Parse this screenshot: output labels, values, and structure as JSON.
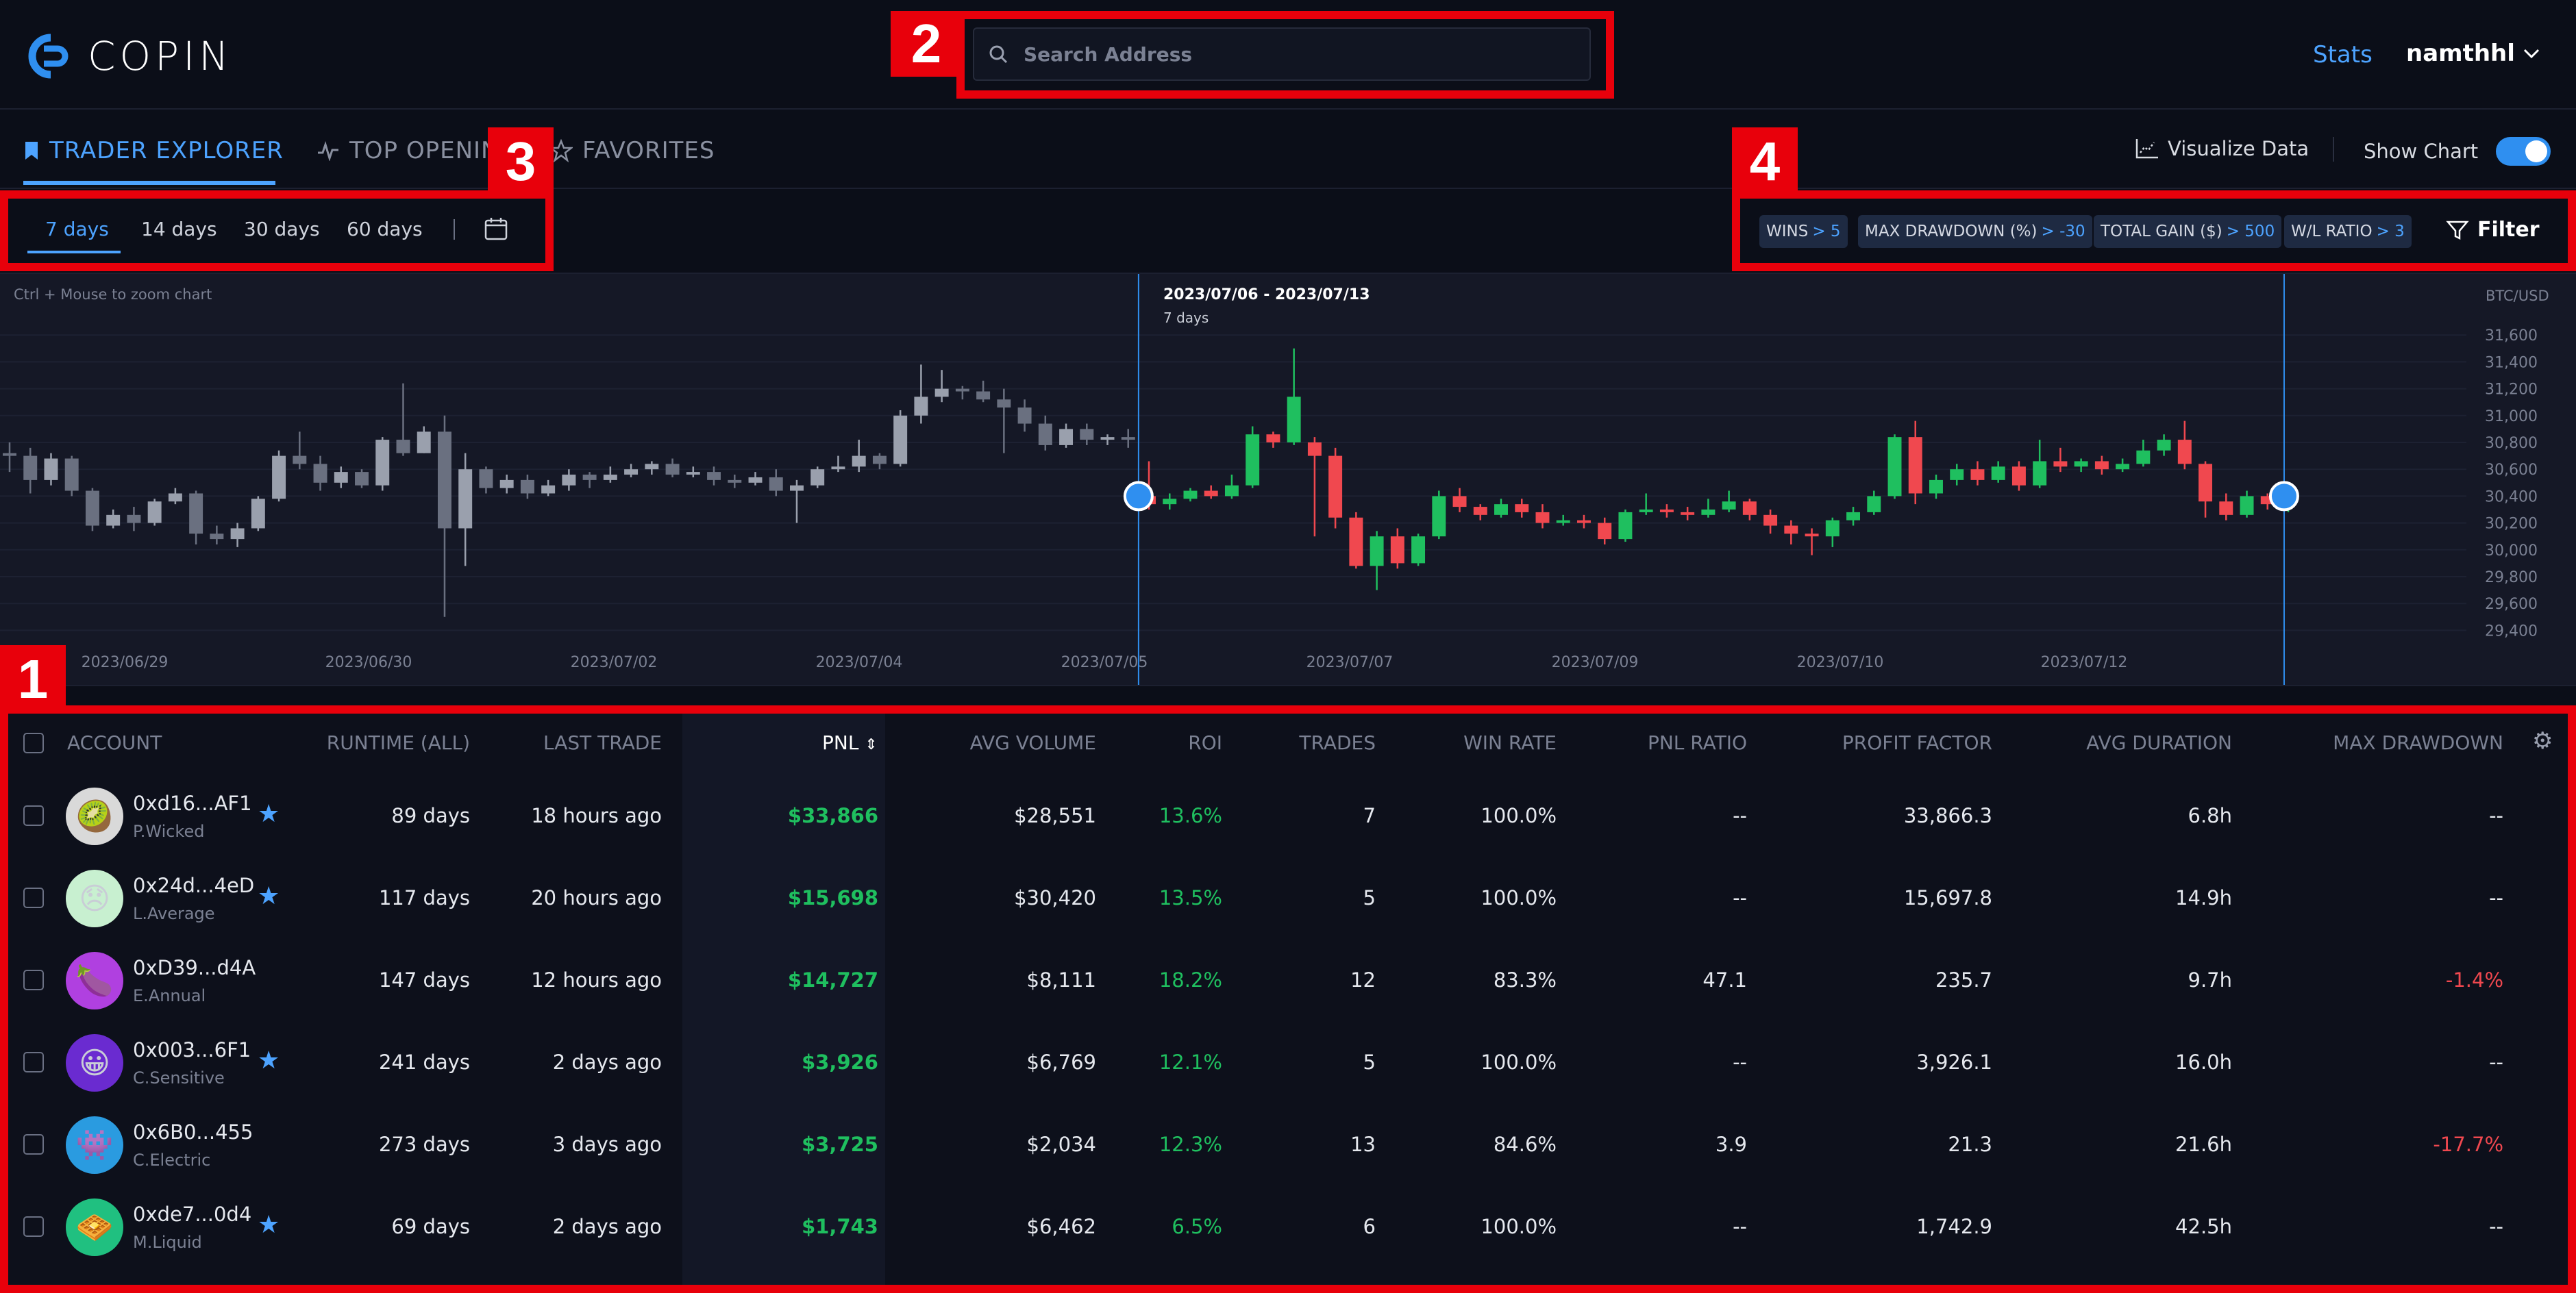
{
  "header": {
    "logo_text": "COPIN",
    "search_placeholder": "Search Address",
    "stats_label": "Stats",
    "username": "namthhl"
  },
  "tabs": [
    {
      "label": "TRADER EXPLORER",
      "active": true
    },
    {
      "label": "TOP OPENING"
    },
    {
      "label": "FAVORITES"
    }
  ],
  "tools": {
    "visualize_label": "Visualize Data",
    "show_chart_label": "Show Chart",
    "show_chart_on": true
  },
  "periods": {
    "items": [
      "7 days",
      "14 days",
      "30 days",
      "60 days"
    ],
    "selected": "7 days"
  },
  "filters": [
    {
      "label": "WINS",
      "value": "> 5"
    },
    {
      "label": "MAX DRAWDOWN (%)",
      "value": "> -30"
    },
    {
      "label": "TOTAL GAIN ($)",
      "value": "> 500"
    },
    {
      "label": "W/L RATIO",
      "value": "> 3"
    }
  ],
  "filter_label": "Filter",
  "chart_hint": "Ctrl + Mouse to zoom chart",
  "chart_data": {
    "type": "candlestick",
    "pair": "BTC/USD",
    "range_title": "2023/07/06 - 2023/07/13",
    "range_sub": "7 days",
    "y_ticks": [
      31600,
      31400,
      31200,
      31000,
      30800,
      30600,
      30400,
      30200,
      30000,
      29800,
      29600,
      29400
    ],
    "y_tick_labels": [
      "31,600",
      "31,400",
      "31,200",
      "31,000",
      "30,800",
      "30,600",
      "30,400",
      "30,200",
      "30,000",
      "29,800",
      "29,600",
      "29,400"
    ],
    "ylim": [
      29300,
      31800
    ],
    "x_labels": [
      "2023/06/29",
      "2023/06/30",
      "2023/07/02",
      "2023/07/04",
      "2023/07/05",
      "2023/07/07",
      "2023/07/09",
      "2023/07/10",
      "2023/07/12"
    ],
    "candles": [
      [
        30720,
        30700,
        30800,
        30580
      ],
      [
        30700,
        30520,
        30760,
        30420
      ],
      [
        30520,
        30680,
        30720,
        30480
      ],
      [
        30680,
        30440,
        30700,
        30400
      ],
      [
        30440,
        30180,
        30460,
        30140
      ],
      [
        30180,
        30260,
        30300,
        30160
      ],
      [
        30260,
        30200,
        30320,
        30140
      ],
      [
        30200,
        30360,
        30380,
        30180
      ],
      [
        30360,
        30420,
        30460,
        30340
      ],
      [
        30420,
        30120,
        30440,
        30040
      ],
      [
        30120,
        30080,
        30180,
        30040
      ],
      [
        30080,
        30160,
        30200,
        30020
      ],
      [
        30160,
        30380,
        30400,
        30140
      ],
      [
        30380,
        30700,
        30740,
        30360
      ],
      [
        30700,
        30640,
        30880,
        30600
      ],
      [
        30640,
        30500,
        30700,
        30440
      ],
      [
        30500,
        30580,
        30620,
        30460
      ],
      [
        30580,
        30480,
        30600,
        30460
      ],
      [
        30480,
        30820,
        30840,
        30440
      ],
      [
        30820,
        30720,
        31240,
        30700
      ],
      [
        30720,
        30880,
        30920,
        30720
      ],
      [
        30880,
        30160,
        31000,
        29500
      ],
      [
        30160,
        30600,
        30720,
        29880
      ],
      [
        30600,
        30460,
        30620,
        30420
      ],
      [
        30460,
        30520,
        30560,
        30420
      ],
      [
        30520,
        30420,
        30560,
        30380
      ],
      [
        30420,
        30480,
        30520,
        30400
      ],
      [
        30480,
        30560,
        30600,
        30440
      ],
      [
        30560,
        30520,
        30580,
        30460
      ],
      [
        30520,
        30560,
        30620,
        30500
      ],
      [
        30560,
        30600,
        30640,
        30540
      ],
      [
        30600,
        30640,
        30660,
        30560
      ],
      [
        30640,
        30560,
        30680,
        30540
      ],
      [
        30560,
        30580,
        30620,
        30540
      ],
      [
        30580,
        30520,
        30620,
        30480
      ],
      [
        30520,
        30500,
        30560,
        30460
      ],
      [
        30500,
        30540,
        30580,
        30480
      ],
      [
        30540,
        30440,
        30600,
        30400
      ],
      [
        30440,
        30480,
        30520,
        30200
      ],
      [
        30480,
        30600,
        30620,
        30460
      ],
      [
        30600,
        30620,
        30700,
        30580
      ],
      [
        30620,
        30700,
        30820,
        30580
      ],
      [
        30700,
        30640,
        30720,
        30600
      ],
      [
        30640,
        31000,
        31040,
        30620
      ],
      [
        31000,
        31140,
        31380,
        30940
      ],
      [
        31140,
        31200,
        31340,
        31100
      ],
      [
        31200,
        31180,
        31220,
        31120
      ],
      [
        31180,
        31120,
        31260,
        31100
      ],
      [
        31120,
        31060,
        31200,
        30720
      ],
      [
        31060,
        30940,
        31120,
        30880
      ],
      [
        30940,
        30780,
        31000,
        30740
      ],
      [
        30780,
        30900,
        30940,
        30760
      ],
      [
        30900,
        30820,
        30940,
        30780
      ],
      [
        30820,
        30840,
        30860,
        30780
      ],
      [
        30840,
        30820,
        30900,
        30760
      ],
      [
        30400,
        30340,
        30660,
        30300
      ],
      [
        30340,
        30380,
        30420,
        30300
      ],
      [
        30380,
        30440,
        30460,
        30360
      ],
      [
        30440,
        30400,
        30480,
        30380
      ],
      [
        30400,
        30480,
        30560,
        30380
      ],
      [
        30480,
        30860,
        30920,
        30460
      ],
      [
        30860,
        30800,
        30880,
        30760
      ],
      [
        30800,
        31140,
        31500,
        30780
      ],
      [
        30800,
        30700,
        30840,
        30100
      ],
      [
        30700,
        30240,
        30760,
        30160
      ],
      [
        30240,
        29880,
        30280,
        29860
      ],
      [
        29880,
        30100,
        30140,
        29700
      ],
      [
        30100,
        29900,
        30160,
        29860
      ],
      [
        29900,
        30100,
        30120,
        29880
      ],
      [
        30100,
        30400,
        30440,
        30080
      ],
      [
        30400,
        30320,
        30460,
        30280
      ],
      [
        30320,
        30260,
        30340,
        30220
      ],
      [
        30260,
        30340,
        30380,
        30240
      ],
      [
        30340,
        30280,
        30380,
        30240
      ],
      [
        30280,
        30200,
        30340,
        30160
      ],
      [
        30200,
        30220,
        30260,
        30180
      ],
      [
        30220,
        30200,
        30260,
        30160
      ],
      [
        30200,
        30080,
        30240,
        30040
      ],
      [
        30080,
        30280,
        30300,
        30060
      ],
      [
        30280,
        30300,
        30420,
        30260
      ],
      [
        30300,
        30280,
        30340,
        30240
      ],
      [
        30280,
        30260,
        30320,
        30220
      ],
      [
        30260,
        30300,
        30380,
        30240
      ],
      [
        30300,
        30360,
        30440,
        30280
      ],
      [
        30360,
        30260,
        30380,
        30220
      ],
      [
        30260,
        30180,
        30300,
        30120
      ],
      [
        30180,
        30120,
        30220,
        30040
      ],
      [
        30120,
        30100,
        30160,
        29960
      ],
      [
        30100,
        30220,
        30240,
        30020
      ],
      [
        30220,
        30280,
        30320,
        30180
      ],
      [
        30280,
        30400,
        30440,
        30260
      ],
      [
        30400,
        30840,
        30860,
        30380
      ],
      [
        30840,
        30420,
        30960,
        30340
      ],
      [
        30420,
        30520,
        30560,
        30380
      ],
      [
        30520,
        30600,
        30640,
        30480
      ],
      [
        30600,
        30520,
        30660,
        30480
      ],
      [
        30520,
        30620,
        30660,
        30500
      ],
      [
        30620,
        30480,
        30660,
        30440
      ],
      [
        30480,
        30660,
        30820,
        30460
      ],
      [
        30660,
        30620,
        30760,
        30580
      ],
      [
        30620,
        30660,
        30680,
        30580
      ],
      [
        30660,
        30600,
        30700,
        30560
      ],
      [
        30600,
        30640,
        30680,
        30580
      ],
      [
        30640,
        30740,
        30820,
        30620
      ],
      [
        30740,
        30820,
        30860,
        30700
      ],
      [
        30820,
        30640,
        30960,
        30600
      ],
      [
        30640,
        30360,
        30660,
        30240
      ],
      [
        30360,
        30260,
        30420,
        30220
      ],
      [
        30260,
        30400,
        30440,
        30240
      ],
      [
        30400,
        30340,
        30420,
        30300
      ],
      [
        30340,
        30400,
        30440,
        30280
      ]
    ],
    "highlight_start_index": 55,
    "highlight_end_index": 110
  },
  "table": {
    "headers": {
      "account": "ACCOUNT",
      "runtime": "RUNTIME (ALL)",
      "last_trade": "LAST TRADE",
      "pnl": "PNL",
      "avg_volume": "AVG VOLUME",
      "roi": "ROI",
      "trades": "TRADES",
      "win_rate": "WIN RATE",
      "pnl_ratio": "PNL RATIO",
      "profit_factor": "PROFIT FACTOR",
      "avg_duration": "AVG DURATION",
      "max_drawdown": "MAX DRAWDOWN"
    },
    "rows": [
      {
        "address": "0xd16...AF1",
        "alias": "P.Wicked",
        "avatar": "🥝",
        "avatar_bg": "#d9d9d9",
        "favorite": true,
        "runtime": "89 days",
        "last_trade": "18 hours ago",
        "pnl": "$33,866",
        "avg_volume": "$28,551",
        "roi": "13.6%",
        "trades": "7",
        "win_rate": "100.0%",
        "pnl_ratio": "--",
        "profit_factor": "33,866.3",
        "avg_duration": "6.8h",
        "max_drawdown": "--"
      },
      {
        "address": "0x24d...4eD",
        "alias": "L.Average",
        "avatar": "😞",
        "avatar_bg": "#c8f0d0",
        "favorite": true,
        "runtime": "117 days",
        "last_trade": "20 hours ago",
        "pnl": "$15,698",
        "avg_volume": "$30,420",
        "roi": "13.5%",
        "trades": "5",
        "win_rate": "100.0%",
        "pnl_ratio": "--",
        "profit_factor": "15,697.8",
        "avg_duration": "14.9h",
        "max_drawdown": "--"
      },
      {
        "address": "0xD39...d4A",
        "alias": "E.Annual",
        "avatar": "🍆",
        "avatar_bg": "#b040e0",
        "favorite": false,
        "runtime": "147 days",
        "last_trade": "12 hours ago",
        "pnl": "$14,727",
        "avg_volume": "$8,111",
        "roi": "18.2%",
        "trades": "12",
        "win_rate": "83.3%",
        "pnl_ratio": "47.1",
        "profit_factor": "235.7",
        "avg_duration": "9.7h",
        "max_drawdown": "-1.4%"
      },
      {
        "address": "0x003...6F1",
        "alias": "C.Sensitive",
        "avatar": "😀",
        "avatar_bg": "#6a2bd0",
        "favorite": true,
        "runtime": "241 days",
        "last_trade": "2 days ago",
        "pnl": "$3,926",
        "avg_volume": "$6,769",
        "roi": "12.1%",
        "trades": "5",
        "win_rate": "100.0%",
        "pnl_ratio": "--",
        "profit_factor": "3,926.1",
        "avg_duration": "16.0h",
        "max_drawdown": "--"
      },
      {
        "address": "0x6B0...455",
        "alias": "C.Electric",
        "avatar": "👾",
        "avatar_bg": "#2a9be0",
        "favorite": false,
        "runtime": "273 days",
        "last_trade": "3 days ago",
        "pnl": "$3,725",
        "avg_volume": "$2,034",
        "roi": "12.3%",
        "trades": "13",
        "win_rate": "84.6%",
        "pnl_ratio": "3.9",
        "profit_factor": "21.3",
        "avg_duration": "21.6h",
        "max_drawdown": "-17.7%"
      },
      {
        "address": "0xde7...0d4",
        "alias": "M.Liquid",
        "avatar": "🧇",
        "avatar_bg": "#20c080",
        "favorite": true,
        "runtime": "69 days",
        "last_trade": "2 days ago",
        "pnl": "$1,743",
        "avg_volume": "$6,462",
        "roi": "6.5%",
        "trades": "6",
        "win_rate": "100.0%",
        "pnl_ratio": "--",
        "profit_factor": "1,742.9",
        "avg_duration": "42.5h",
        "max_drawdown": "--"
      }
    ]
  },
  "annotations": [
    "1",
    "2",
    "3",
    "4"
  ],
  "colors": {
    "accent": "#4da3ff",
    "up": "#1fbf5f",
    "down": "#f0484f",
    "annotation": "#e8000b"
  }
}
